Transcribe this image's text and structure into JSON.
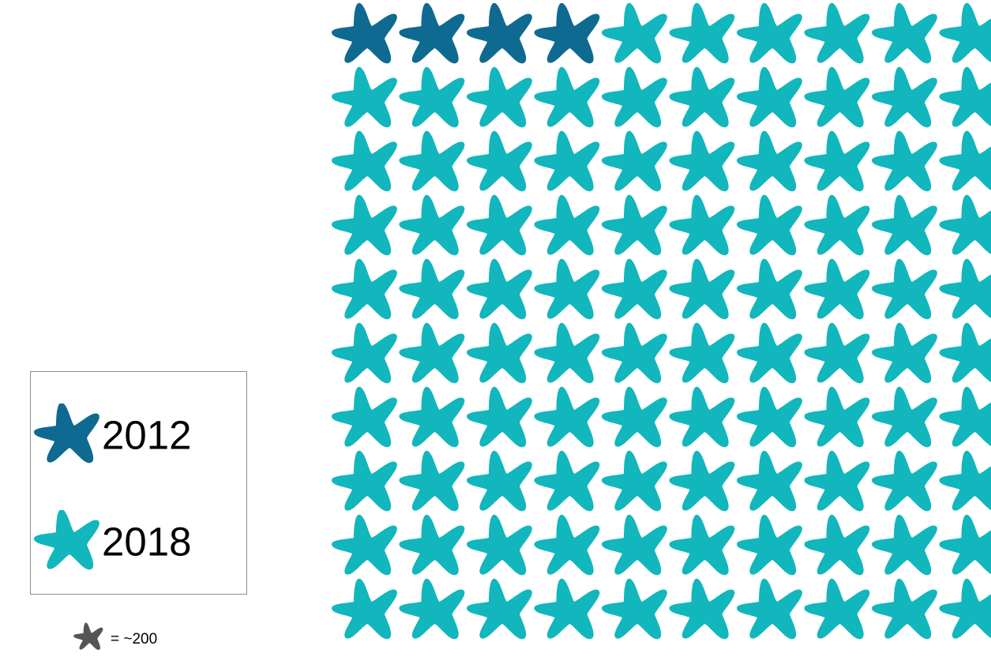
{
  "chart_data": {
    "type": "pictograph",
    "unit_value": "~200",
    "unit_label": "= ~200",
    "grid": {
      "rows": 10,
      "cols": 10
    },
    "series": [
      {
        "name": "2012",
        "count": 4,
        "color": "#0e6a90"
      },
      {
        "name": "2018",
        "count": 96,
        "color": "#12b6bd"
      }
    ],
    "icon": "starfish-icon",
    "unit_icon_color": "#555555"
  }
}
